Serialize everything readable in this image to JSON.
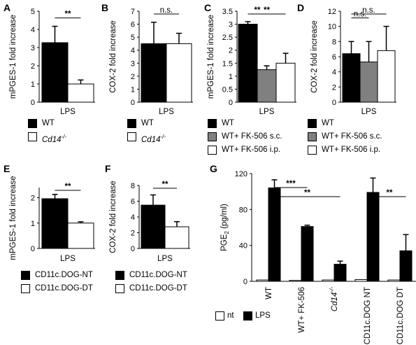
{
  "colors": {
    "black": "#000000",
    "gray": "#808080",
    "white": "#ffffff",
    "axis": "#000000"
  },
  "chart_data": [
    {
      "panel": "A",
      "type": "bar",
      "ylabel": "mPGES-1 fold increase",
      "xlabel": "LPS",
      "ylim": [
        0,
        5
      ],
      "yticks": [
        "0",
        "1",
        "2",
        "3",
        "4",
        "5"
      ],
      "series": [
        {
          "name": "WT",
          "color": "#000000",
          "value": 3.27,
          "error": 0.9
        },
        {
          "name": "Cd14-/-",
          "color": "#ffffff",
          "value": 1.0,
          "error": 0.22
        }
      ],
      "sig": [
        {
          "from": 0,
          "to": 1,
          "label": "**"
        }
      ],
      "legend": [
        {
          "label": "WT",
          "color": "#000000"
        },
        {
          "label": "Cd14-/-",
          "color": "#ffffff",
          "italic": true
        }
      ]
    },
    {
      "panel": "B",
      "type": "bar",
      "ylabel": "COX-2 fold increase",
      "xlabel": "LPS",
      "ylim": [
        0,
        7
      ],
      "yticks": [
        "0",
        "1",
        "2",
        "3",
        "4",
        "5",
        "6",
        "7"
      ],
      "series": [
        {
          "name": "WT",
          "color": "#000000",
          "value": 4.5,
          "error": 1.65
        },
        {
          "name": "Cd14-/-",
          "color": "#ffffff",
          "value": 4.5,
          "error": 0.8
        }
      ],
      "sig": [
        {
          "from": 0,
          "to": 1,
          "label": "n.s."
        }
      ],
      "legend": [
        {
          "label": "WT",
          "color": "#000000"
        },
        {
          "label": "Cd14-/-",
          "color": "#ffffff",
          "italic": true
        }
      ]
    },
    {
      "panel": "C",
      "type": "bar",
      "ylabel": "mPGES-1 fold increase",
      "xlabel": "LPS",
      "ylim": [
        0,
        3.5
      ],
      "yticks": [
        "0",
        "0.5",
        "1",
        "1.5",
        "2",
        "2.5",
        "3",
        "3.5"
      ],
      "series": [
        {
          "name": "WT",
          "color": "#000000",
          "value": 3.0,
          "error": 0.1
        },
        {
          "name": "WT+ FK-506 s.c.",
          "color": "#808080",
          "value": 1.25,
          "error": 0.15
        },
        {
          "name": "WT+ FK-506 i.p.",
          "color": "#ffffff",
          "value": 1.5,
          "error": 0.38
        }
      ],
      "sig": [
        {
          "from": 0,
          "to": 1,
          "label": "**"
        },
        {
          "from": 0,
          "to": 2,
          "label": "**"
        }
      ],
      "legend": [
        {
          "label": "WT",
          "color": "#000000"
        },
        {
          "label": "WT+ FK-506 s.c.",
          "color": "#808080"
        },
        {
          "label": "WT+ FK-506 i.p.",
          "color": "#ffffff"
        }
      ]
    },
    {
      "panel": "D",
      "type": "bar",
      "ylabel": "COX-2 fold increase",
      "xlabel": "LPS",
      "ylim": [
        0,
        12
      ],
      "yticks": [
        "0",
        "2",
        "4",
        "6",
        "8",
        "10",
        "12"
      ],
      "series": [
        {
          "name": "WT",
          "color": "#000000",
          "value": 6.4,
          "error": 1.6
        },
        {
          "name": "WT+ FK-506 s.c.",
          "color": "#808080",
          "value": 5.3,
          "error": 2.7
        },
        {
          "name": "WT+ FK-506 i.p.",
          "color": "#ffffff",
          "value": 6.8,
          "error": 3.2
        }
      ],
      "sig": [
        {
          "from": 0,
          "to": 1,
          "label": "n.s."
        },
        {
          "from": 0,
          "to": 2,
          "label": "n.s."
        }
      ],
      "legend": [
        {
          "label": "WT",
          "color": "#000000"
        },
        {
          "label": "WT+ FK-506 s.c.",
          "color": "#808080"
        },
        {
          "label": "WT+ FK-506 i.p.",
          "color": "#ffffff"
        }
      ]
    },
    {
      "panel": "E",
      "type": "bar",
      "ylabel": "mPGES-1 fold increase",
      "xlabel": "LPS",
      "ylim": [
        0,
        2.4
      ],
      "yticks": [
        "0",
        "1",
        "2"
      ],
      "ytick_values": [
        0,
        1,
        2
      ],
      "series": [
        {
          "name": "CD11c.DOG-NT",
          "color": "#000000",
          "value": 1.96,
          "error": 0.17
        },
        {
          "name": "CD11c.DOG-DT",
          "color": "#ffffff",
          "value": 1.0,
          "error": 0.05
        }
      ],
      "sig": [
        {
          "from": 0,
          "to": 1,
          "label": "**"
        }
      ],
      "legend": [
        {
          "label": "CD11c.DOG-NT",
          "color": "#000000"
        },
        {
          "label": "CD11c.DOG-DT",
          "color": "#ffffff"
        }
      ]
    },
    {
      "panel": "F",
      "type": "bar",
      "ylabel": "COX-2 fold increase",
      "xlabel": "LPS",
      "ylim": [
        0,
        8
      ],
      "yticks": [
        "0",
        "2",
        "4",
        "6",
        "8"
      ],
      "series": [
        {
          "name": "CD11c.DOG-NT",
          "color": "#000000",
          "value": 5.5,
          "error": 1.3
        },
        {
          "name": "CD11c.DOG-DT",
          "color": "#ffffff",
          "value": 2.75,
          "error": 0.65
        }
      ],
      "sig": [
        {
          "from": 0,
          "to": 1,
          "label": "**"
        }
      ],
      "legend": [
        {
          "label": "CD11c.DOG-NT",
          "color": "#000000"
        },
        {
          "label": "CD11c.DOG-DT",
          "color": "#ffffff"
        }
      ]
    },
    {
      "panel": "G",
      "type": "bar",
      "ylabel": "PGE2 (pg/ml)",
      "ylim": [
        0,
        120
      ],
      "yticks": [
        "0",
        "40",
        "80",
        "120"
      ],
      "categories": [
        "WT",
        "WT+ FK-506",
        "Cd14-/-",
        "CD11c.DOG NT",
        "CD11c.DOG DT"
      ],
      "series": [
        {
          "name": "nt",
          "color": "#ffffff",
          "values": [
            1.5,
            1.0,
            1.5,
            2.0,
            1.5
          ],
          "errors": [
            0,
            0,
            0,
            0,
            0
          ]
        },
        {
          "name": "LPS",
          "color": "#000000",
          "values": [
            104,
            61,
            19,
            99,
            34
          ],
          "errors": [
            9,
            1.5,
            3.5,
            16,
            18
          ]
        }
      ],
      "sig": [
        {
          "from": 0,
          "to": 1,
          "label": "***"
        },
        {
          "from": 0,
          "to": 2,
          "label": "**"
        },
        {
          "from": 3,
          "to": 4,
          "label": "**"
        }
      ],
      "legend": [
        {
          "label": "nt",
          "color": "#ffffff"
        },
        {
          "label": "LPS",
          "color": "#000000"
        }
      ]
    }
  ]
}
